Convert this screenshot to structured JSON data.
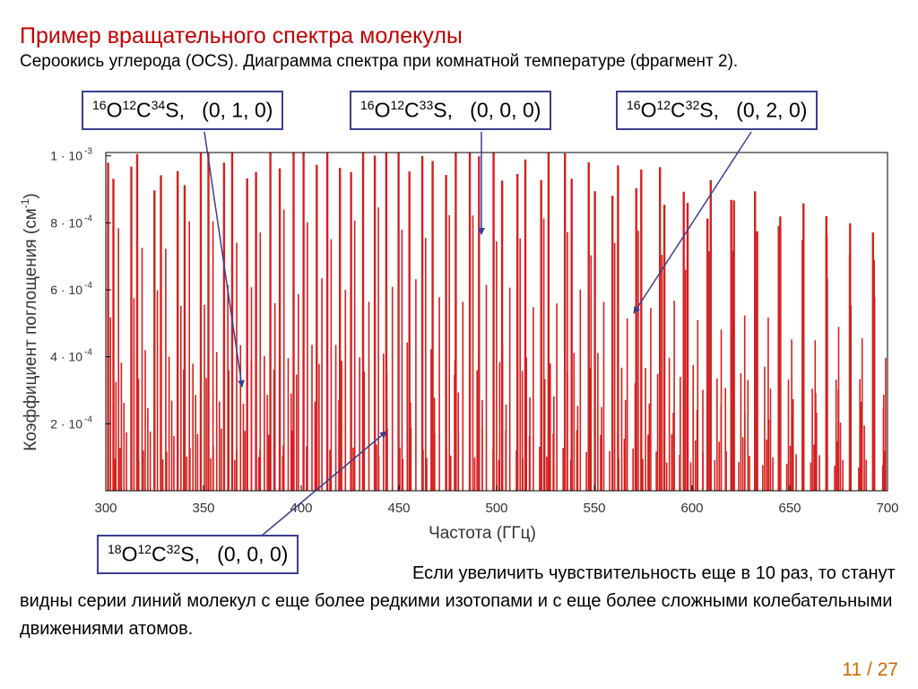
{
  "title": "Пример вращательного спектра молекулы",
  "subtitle": "Сероокись углерода (OCS).  Диаграмма спектра при комнатной температуре (фрагмент 2).",
  "labels": [
    {
      "iso1": "16",
      "el1": "O",
      "iso2": "12",
      "el2": "C",
      "iso3": "34",
      "el3": "S",
      "state": ",   (0, 1, 0)"
    },
    {
      "iso1": "16",
      "el1": "O",
      "iso2": "12",
      "el2": "C",
      "iso3": "33",
      "el3": "S",
      "state": ",   (0, 0, 0)"
    },
    {
      "iso1": "16",
      "el1": "O",
      "iso2": "12",
      "el2": "C",
      "iso3": "32",
      "el3": "S",
      "state": ",   (0, 2, 0)"
    },
    {
      "iso1": "18",
      "el1": "O",
      "iso2": "12",
      "el2": "C",
      "iso3": "32",
      "el3": "S",
      "state": ",   (0, 0, 0)"
    }
  ],
  "note": "Если увеличить чувствительность еще в 10 раз, то станут видны серии линий молекул с еще более редкими изотопами и с еще более сложными колебательными движениями атомов.",
  "page_number": "11 / 27",
  "colors": {
    "title": "#c00000",
    "spectrum": "#d42020",
    "box_border": "#3a3f8f",
    "arrow": "#3a3f8f",
    "page_number": "#d06a00"
  },
  "chart_data": {
    "type": "bar",
    "xlabel": "Частота (ГГц)",
    "ylabel": "Коэффициент поглощения  (см",
    "ylabel_sup": "-1",
    "ylabel_end": ")",
    "xlim": [
      300,
      700
    ],
    "ylim": [
      0,
      0.00101
    ],
    "x_ticks": [
      "300",
      "350",
      "400",
      "450",
      "500",
      "550",
      "600",
      "650",
      "700"
    ],
    "y_ticks": [
      {
        "value": 0.0002,
        "mantissa": "2 · 10",
        "exp": "-4"
      },
      {
        "value": 0.0004,
        "mantissa": "4 · 10",
        "exp": "-4"
      },
      {
        "value": 0.0006,
        "mantissa": "6 · 10",
        "exp": "-4"
      },
      {
        "value": 0.0008,
        "mantissa": "8 · 10",
        "exp": "-4"
      },
      {
        "value": 0.001,
        "mantissa": "1 · 10",
        "exp": "-3"
      }
    ],
    "grid": false,
    "series": [
      {
        "spacing_ghz": 12.16,
        "start_ghz": 303.9,
        "peak": 0.00101
      },
      {
        "spacing_ghz": 11.86,
        "start_ghz": 301.2,
        "peak": 0.00101
      },
      {
        "spacing_ghz": 12.09,
        "start_ghz": 306.5,
        "peak": 0.0008
      },
      {
        "spacing_ghz": 12.22,
        "start_ghz": 309.3,
        "peak": 0.00028
      },
      {
        "spacing_ghz": 11.55,
        "start_ghz": 305.2,
        "peak": 0.00037
      },
      {
        "spacing_ghz": 12.02,
        "start_ghz": 302.4,
        "peak": 0.0006
      },
      {
        "spacing_ghz": 12.19,
        "start_ghz": 308.0,
        "peak": 0.00042
      },
      {
        "spacing_ghz": 12.13,
        "start_ghz": 310.6,
        "peak": 0.00018
      },
      {
        "spacing_ghz": 11.93,
        "start_ghz": 307.3,
        "peak": 0.00013
      },
      {
        "spacing_ghz": 12.28,
        "start_ghz": 304.6,
        "peak": 0.0001
      }
    ]
  }
}
